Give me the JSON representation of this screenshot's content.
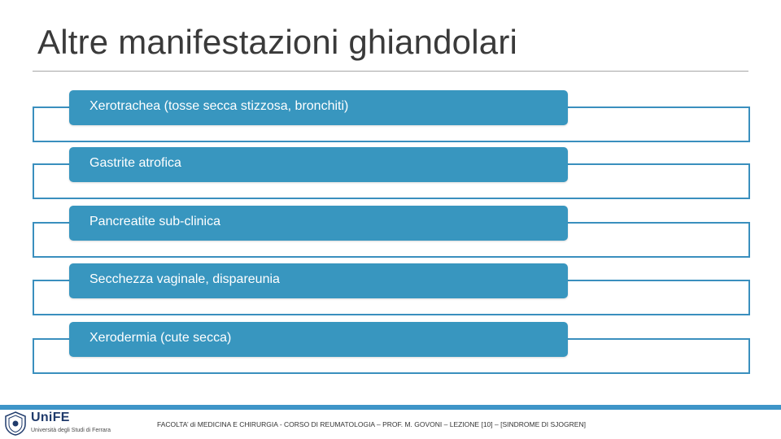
{
  "slide": {
    "title": "Altre manifestazioni ghiandolari"
  },
  "items": [
    {
      "label": "Xerotrachea (tosse secca stizzosa, bronchiti)"
    },
    {
      "label": "Gastrite atrofica"
    },
    {
      "label": "Pancreatite sub-clinica"
    },
    {
      "label": "Secchezza vaginale, dispareunia"
    },
    {
      "label": "Xerodermia (cute secca)"
    }
  ],
  "footer": {
    "logo_name": "Uni",
    "logo_name_accent": "FE",
    "logo_subtitle": "Università degli Studi di Ferrara",
    "course_text": "FACOLTA’ di MEDICINA E CHIRURGIA - CORSO DI REUMATOLOGIA – PROF. M. GOVONI – LEZIONE [10] – [SINDROME DI SJOGREN]"
  },
  "colors": {
    "accent": "#3896bf",
    "outline": "#3a8fbe",
    "footer_band": "#3e95c8",
    "title_text": "#3a3a3a"
  }
}
